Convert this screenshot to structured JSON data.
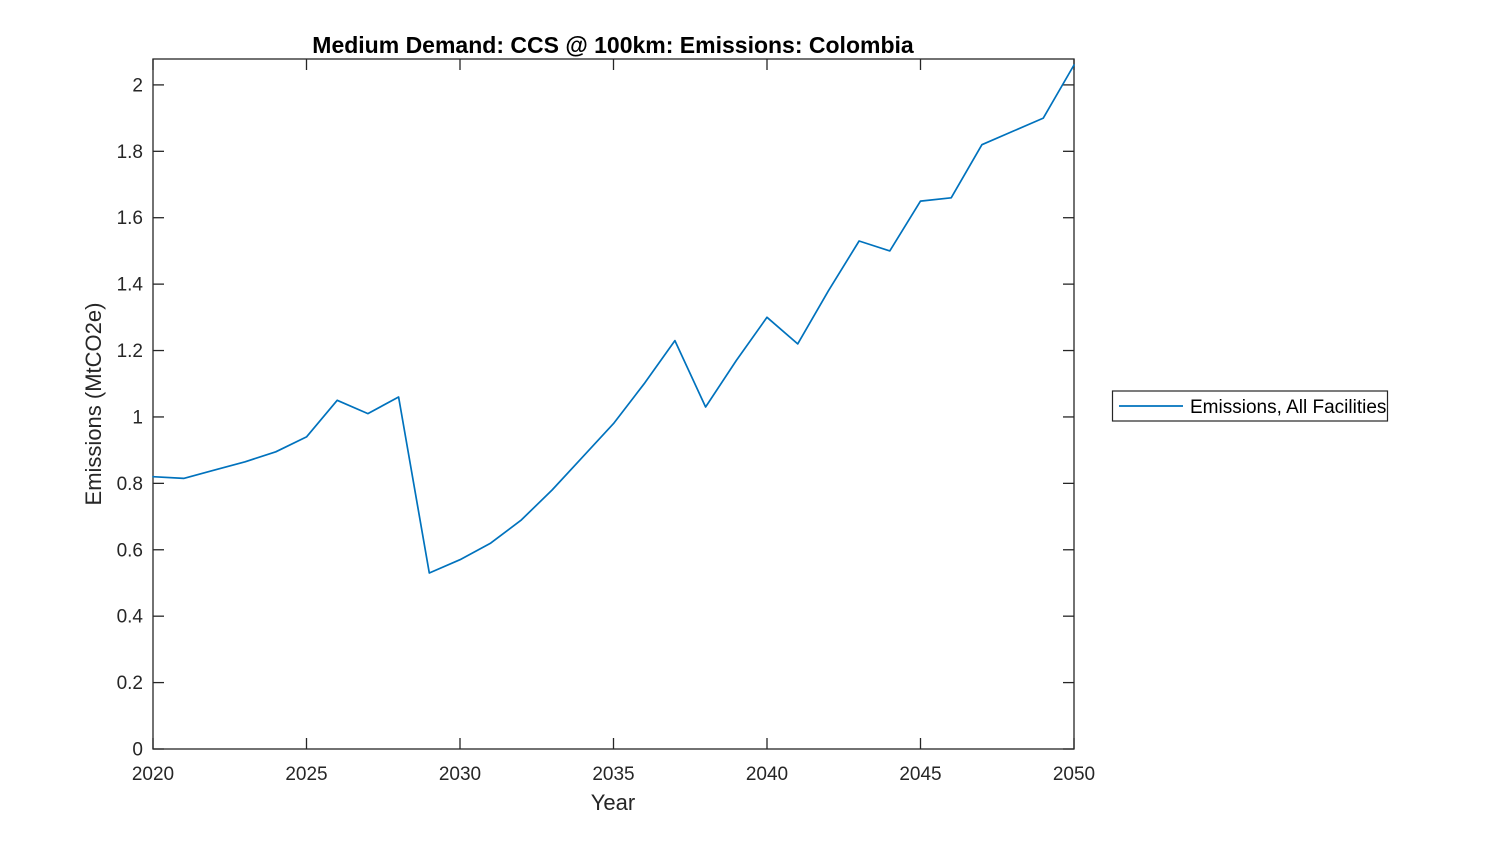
{
  "figure": {
    "background_color": "#ffffff"
  },
  "chart_data": {
    "type": "line",
    "title": "Medium Demand: CCS @ 100km: Emissions: Colombia",
    "xlabel": "Year",
    "ylabel": "Emissions (MtCO2e)",
    "grid": false,
    "box": true,
    "axis_color": "#262626",
    "tick_direction": "in",
    "legend_position": "right-outside",
    "xlim": [
      2020,
      2050
    ],
    "ylim": [
      0,
      2.078
    ],
    "x_ticks": [
      2020,
      2025,
      2030,
      2035,
      2040,
      2045,
      2050
    ],
    "x_tick_labels": [
      "2020",
      "2025",
      "2030",
      "2035",
      "2040",
      "2045",
      "2050"
    ],
    "y_ticks": [
      0,
      0.2,
      0.4,
      0.6,
      0.8,
      1,
      1.2,
      1.4,
      1.6,
      1.8,
      2
    ],
    "y_tick_labels": [
      "0",
      "0.2",
      "0.4",
      "0.6",
      "0.8",
      "1",
      "1.2",
      "1.4",
      "1.6",
      "1.8",
      "2"
    ],
    "x": [
      2020,
      2021,
      2022,
      2023,
      2024,
      2025,
      2026,
      2027,
      2028,
      2029,
      2030,
      2031,
      2032,
      2033,
      2034,
      2035,
      2036,
      2037,
      2038,
      2039,
      2040,
      2041,
      2042,
      2043,
      2044,
      2045,
      2046,
      2047,
      2048,
      2049,
      2050
    ],
    "series": [
      {
        "name": "Emissions, All Facilities",
        "color": "#0072BD",
        "values": [
          0.82,
          0.815,
          0.84,
          0.865,
          0.895,
          0.94,
          1.05,
          1.01,
          1.06,
          0.53,
          0.57,
          0.62,
          0.69,
          0.78,
          0.88,
          0.98,
          1.1,
          1.23,
          1.03,
          1.17,
          1.3,
          1.22,
          1.38,
          1.53,
          1.5,
          1.65,
          1.66,
          1.82,
          1.86,
          1.9,
          2.06
        ]
      }
    ]
  }
}
